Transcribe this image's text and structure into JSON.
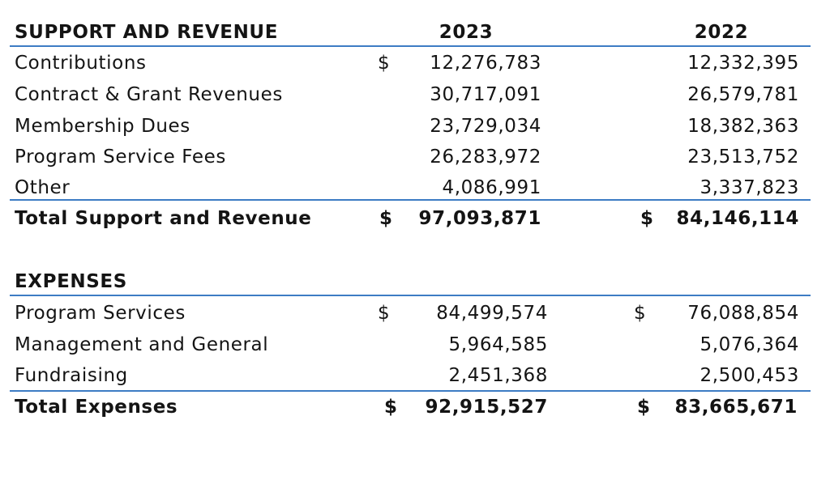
{
  "sections": [
    {
      "title": "SUPPORT AND REVENUE",
      "columns": [
        "2023",
        "2022"
      ],
      "rows": [
        {
          "label": "Contributions",
          "cells": [
            {
              "sign": "$",
              "amount": "12,276,783"
            },
            {
              "amount": "12,332,395"
            }
          ]
        },
        {
          "label": "Contract & Grant Revenues",
          "cells": [
            {
              "amount": "30,717,091"
            },
            {
              "amount": "26,579,781"
            }
          ]
        },
        {
          "label": "Membership Dues",
          "cells": [
            {
              "amount": "23,729,034"
            },
            {
              "amount": "18,382,363"
            }
          ]
        },
        {
          "label": "Program Service Fees",
          "cells": [
            {
              "amount": "26,283,972"
            },
            {
              "amount": "23,513,752"
            }
          ]
        },
        {
          "label": "Other",
          "cells": [
            {
              "amount": "4,086,991"
            },
            {
              "amount": "3,337,823"
            }
          ]
        }
      ],
      "total": {
        "label": "Total Support and Revenue",
        "cells": [
          {
            "sign": "$",
            "amount": "97,093,871"
          },
          {
            "sign": "$",
            "amount": "84,146,114"
          }
        ]
      }
    },
    {
      "title": "EXPENSES",
      "rows": [
        {
          "label": "Program Services",
          "cells": [
            {
              "sign": "$",
              "amount": "84,499,574"
            },
            {
              "sign": "$",
              "amount": "76,088,854"
            }
          ]
        },
        {
          "label": "Management and General",
          "cells": [
            {
              "amount": "5,964,585"
            },
            {
              "amount": "5,076,364"
            }
          ]
        },
        {
          "label": "Fundraising",
          "cells": [
            {
              "amount": "2,451,368"
            },
            {
              "amount": "2,500,453"
            }
          ]
        }
      ],
      "total": {
        "label": "Total Expenses",
        "cells": [
          {
            "sign": "$",
            "amount": "92,915,527"
          },
          {
            "sign": "$",
            "amount": "83,665,671"
          }
        ]
      }
    }
  ]
}
